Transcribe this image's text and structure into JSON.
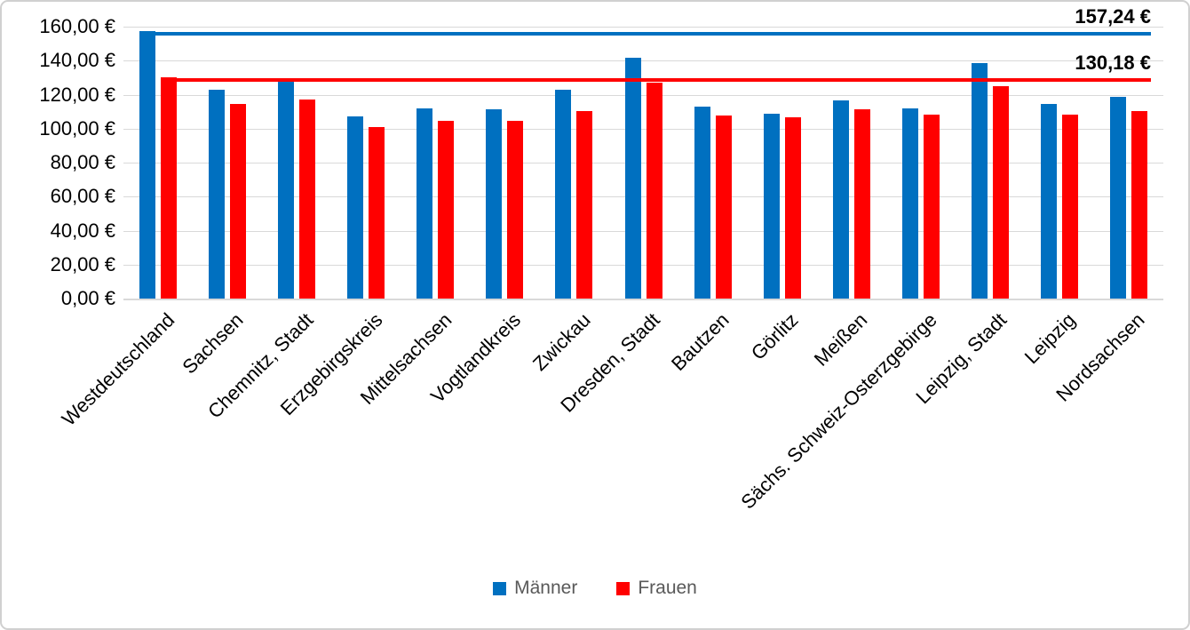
{
  "chart_data": {
    "type": "bar",
    "title": "",
    "categories": [
      "Westdeutschland",
      "Sachsen",
      "Chemnitz, Stadt",
      "Erzgebirgskreis",
      "Mittelsachsen",
      "Vogtlandkreis",
      "Zwickau",
      "Dresden, Stadt",
      "Bautzen",
      "Görlitz",
      "Meißen",
      "Sächs. Schweiz-Osterzgebirge",
      "Leipzig, Stadt",
      "Leipzig",
      "Nordsachsen"
    ],
    "series": [
      {
        "name": "Männer",
        "color": "#0070C0",
        "values": [
          157.24,
          122.8,
          128.2,
          107.0,
          112.1,
          111.6,
          123.0,
          141.8,
          112.8,
          108.9,
          116.8,
          111.7,
          138.5,
          114.3,
          118.6
        ]
      },
      {
        "name": "Frauen",
        "color": "#FF0000",
        "values": [
          130.18,
          114.6,
          117.3,
          101.0,
          104.4,
          104.7,
          110.1,
          127.3,
          107.9,
          106.9,
          111.4,
          108.2,
          125.1,
          108.2,
          110.5
        ]
      }
    ],
    "reference_lines": [
      {
        "series": "Männer",
        "value": 157.24,
        "label": "157,24 €",
        "color": "#0070C0"
      },
      {
        "series": "Frauen",
        "value": 130.18,
        "label": "130,18 €",
        "color": "#FF0000"
      }
    ],
    "y_axis": {
      "min": 0,
      "max": 160,
      "step": 20,
      "tick_labels": [
        "0,00 €",
        "20,00 €",
        "40,00 €",
        "60,00 €",
        "80,00 €",
        "100,00 €",
        "120,00 €",
        "140,00 €",
        "160,00 €"
      ]
    },
    "xlabel": "",
    "ylabel": "",
    "grid": true,
    "legend": {
      "position": "bottom",
      "entries": [
        "Männer",
        "Frauen"
      ]
    }
  },
  "colors": {
    "bar_maenner": "#0070C0",
    "bar_frauen": "#FF0000",
    "gridline": "#D9D9D9",
    "legend_text": "#595959",
    "axis_text": "#000000",
    "chart_border": "#D0D0D0",
    "background": "#FFFFFF"
  }
}
